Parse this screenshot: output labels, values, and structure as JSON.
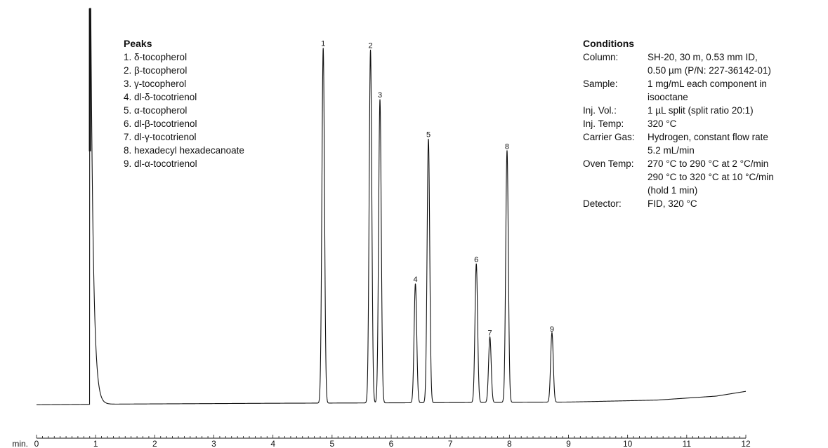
{
  "peaks_legend": {
    "heading": "Peaks",
    "items": [
      "1. δ-tocopherol",
      "2. β-tocopherol",
      "3. γ-tocopherol",
      "4. dl-δ-tocotrienol",
      "5. α-tocopherol",
      "6. dl-β-tocotrienol",
      "7. dl-γ-tocotrienol",
      "8. hexadecyl hexadecanoate",
      "9. dl-α-tocotrienol"
    ]
  },
  "conditions": {
    "heading": "Conditions",
    "rows": [
      {
        "key": "Column:",
        "lines": [
          "SH-20, 30 m, 0.53 mm ID,",
          "0.50 µm (P/N: 227-36142-01)"
        ]
      },
      {
        "key": "Sample:",
        "lines": [
          "1 mg/mL each component in",
          "isooctane"
        ]
      },
      {
        "key": "Inj. Vol.:",
        "lines": [
          "1 µL split (split ratio 20:1)"
        ]
      },
      {
        "key": "Inj. Temp:",
        "lines": [
          "320 °C"
        ]
      },
      {
        "key": "Carrier Gas:",
        "lines": [
          "Hydrogen, constant flow rate",
          "5.2 mL/min"
        ]
      },
      {
        "key": "Oven Temp:",
        "lines": [
          "270 °C to 290 °C at 2 °C/min",
          "290 °C to 320 °C at 10 °C/min",
          "(hold 1 min)"
        ]
      },
      {
        "key": "Detector:",
        "lines": [
          "FID, 320 °C"
        ]
      }
    ]
  },
  "chart_data": {
    "type": "line",
    "title": "",
    "xlabel": "min.",
    "ylabel": "",
    "xlim": [
      0,
      12
    ],
    "ylim": [
      0,
      100
    ],
    "grid": false,
    "x_ticks": [
      0,
      1,
      2,
      3,
      4,
      5,
      6,
      7,
      8,
      9,
      10,
      11,
      12
    ],
    "x_tick_labels": [
      "0",
      "1",
      "2",
      "3",
      "4",
      "5",
      "6",
      "7",
      "8",
      "9",
      "10",
      "11",
      "12"
    ],
    "solvent_peak": {
      "rt": 0.91,
      "height": 100
    },
    "peaks": [
      {
        "label": "1",
        "rt": 4.85,
        "height": 89.5
      },
      {
        "label": "2",
        "rt": 5.65,
        "height": 89.0
      },
      {
        "label": "3",
        "rt": 5.81,
        "height": 76.5
      },
      {
        "label": "4",
        "rt": 6.41,
        "height": 30.0
      },
      {
        "label": "5",
        "rt": 6.63,
        "height": 66.5
      },
      {
        "label": "6",
        "rt": 7.44,
        "height": 35.0
      },
      {
        "label": "7",
        "rt": 7.67,
        "height": 16.5
      },
      {
        "label": "8",
        "rt": 7.96,
        "height": 63.5
      },
      {
        "label": "9",
        "rt": 8.72,
        "height": 17.5
      }
    ],
    "baseline": [
      [
        0,
        0.1
      ],
      [
        1.5,
        0.3
      ],
      [
        4,
        0.5
      ],
      [
        6,
        0.6
      ],
      [
        9,
        0.8
      ],
      [
        10.5,
        1.3
      ],
      [
        11.5,
        2.3
      ],
      [
        12,
        3.5
      ]
    ]
  }
}
